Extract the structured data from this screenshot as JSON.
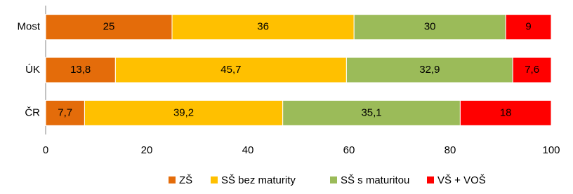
{
  "chart_data": {
    "type": "stacked-bar-horizontal",
    "categories": [
      "Most",
      "ÚK",
      "ČR"
    ],
    "series": [
      {
        "name": "ZŠ",
        "color": "#e46c0a",
        "values": [
          25,
          13.8,
          7.7
        ],
        "value_labels": [
          "25",
          "13,8",
          "7,7"
        ]
      },
      {
        "name": "SŠ bez maturity",
        "color": "#ffc000",
        "values": [
          36,
          45.7,
          39.2
        ],
        "value_labels": [
          "36",
          "45,7",
          "39,2"
        ]
      },
      {
        "name": "SŠ s maturitou",
        "color": "#9bbb59",
        "values": [
          30,
          32.9,
          35.1
        ],
        "value_labels": [
          "30",
          "32,9",
          "35,1"
        ]
      },
      {
        "name": "VŠ + VOŠ",
        "color": "#ff0000",
        "values": [
          9,
          7.6,
          18
        ],
        "value_labels": [
          "9",
          "7,6",
          "18"
        ]
      }
    ],
    "xlim": [
      0,
      100
    ],
    "xticks": [
      0,
      20,
      40,
      60,
      80,
      100
    ],
    "legend": "bottom"
  }
}
